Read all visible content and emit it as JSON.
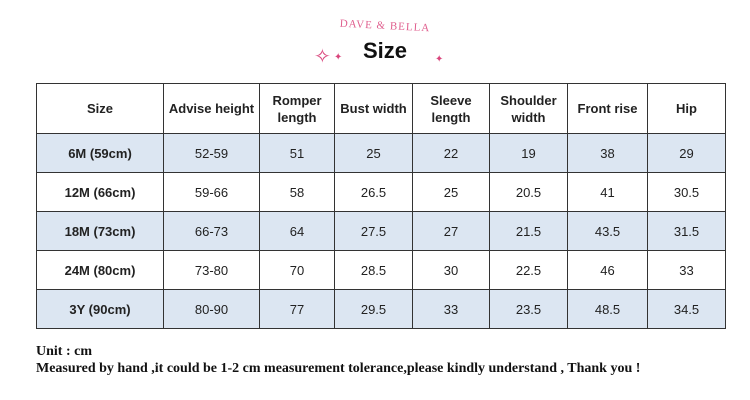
{
  "header": {
    "brand": "DAVE & BELLA",
    "title": "Size"
  },
  "table": {
    "columns": [
      "Size",
      "Advise height",
      "Romper length",
      "Bust width",
      "Sleeve length",
      "Shoulder width",
      "Front rise",
      "Hip"
    ],
    "rows": [
      [
        "6M (59cm)",
        "52-59",
        "51",
        "25",
        "22",
        "19",
        "38",
        "29"
      ],
      [
        "12M (66cm)",
        "59-66",
        "58",
        "26.5",
        "25",
        "20.5",
        "41",
        "30.5"
      ],
      [
        "18M (73cm)",
        "66-73",
        "64",
        "27.5",
        "27",
        "21.5",
        "43.5",
        "31.5"
      ],
      [
        "24M (80cm)",
        "73-80",
        "70",
        "28.5",
        "30",
        "22.5",
        "46",
        "33"
      ],
      [
        "3Y (90cm)",
        "80-90",
        "77",
        "29.5",
        "33",
        "23.5",
        "48.5",
        "34.5"
      ]
    ]
  },
  "notes": {
    "unit": "Unit : cm",
    "tolerance": "Measured by hand ,it could be 1-2 cm measurement tolerance,please kindly understand , Thank you !"
  },
  "colors": {
    "brand": "#e0608f",
    "row_shade": "#dce6f2"
  }
}
